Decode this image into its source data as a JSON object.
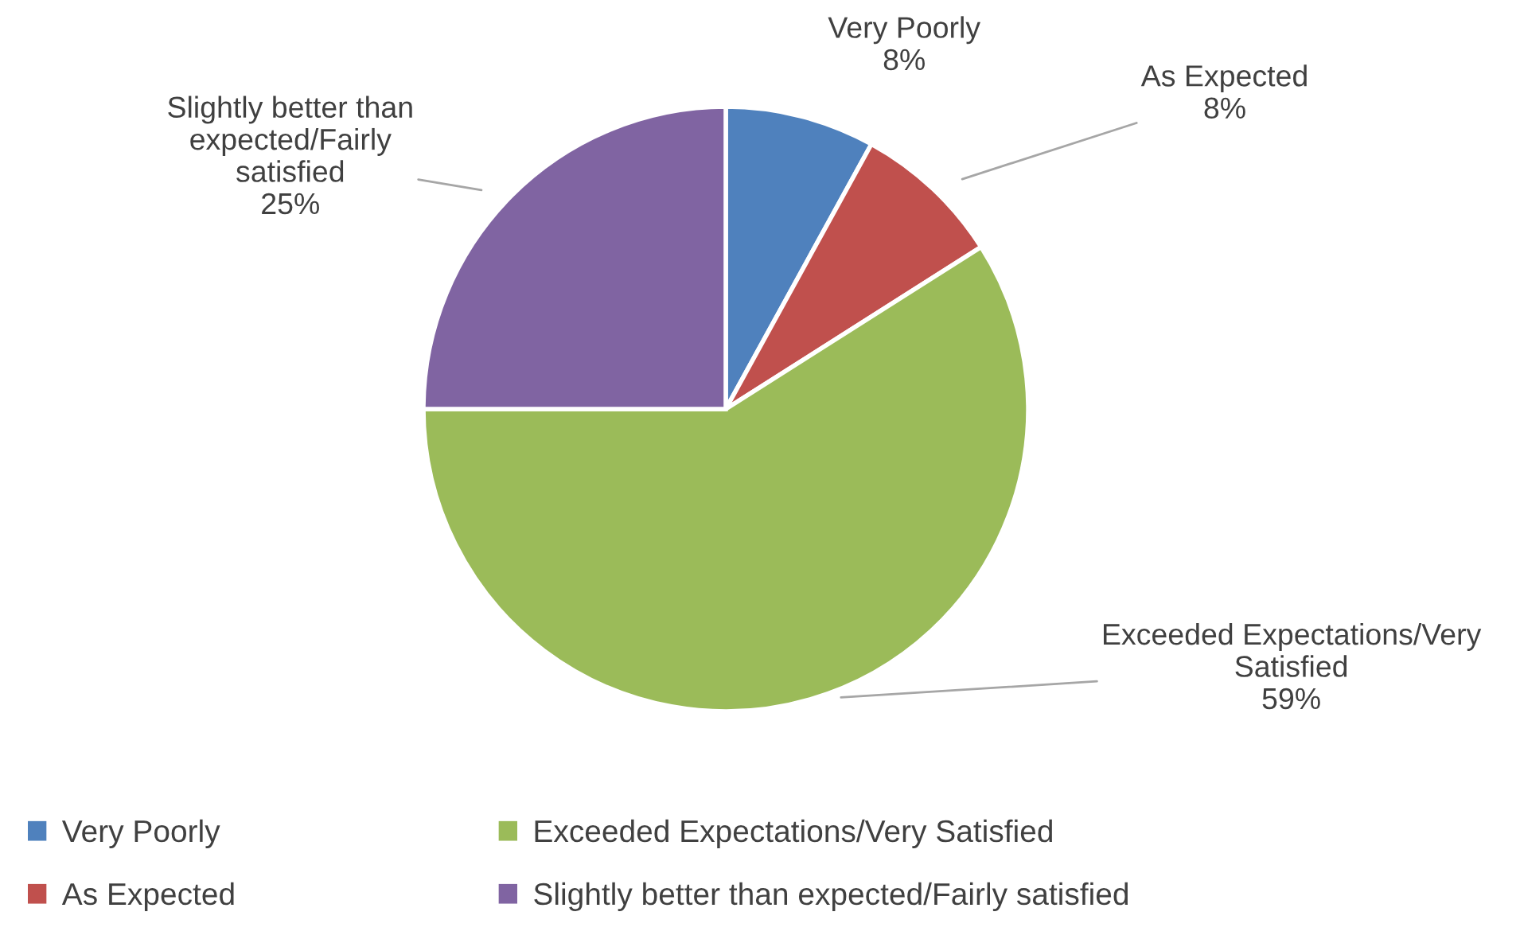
{
  "chart_data": {
    "type": "pie",
    "categories": [
      "Very Poorly",
      "As Expected",
      "Exceeded Expectations/Very Satisfied",
      "Slightly better than expected/Fairly satisfied"
    ],
    "values": [
      8,
      8,
      59,
      25
    ],
    "value_labels": [
      "8%",
      "8%",
      "59%",
      "25%"
    ],
    "colors": [
      "#4f81bd",
      "#c0504d",
      "#9bbb59",
      "#8064a2"
    ],
    "legend": "bottom"
  }
}
